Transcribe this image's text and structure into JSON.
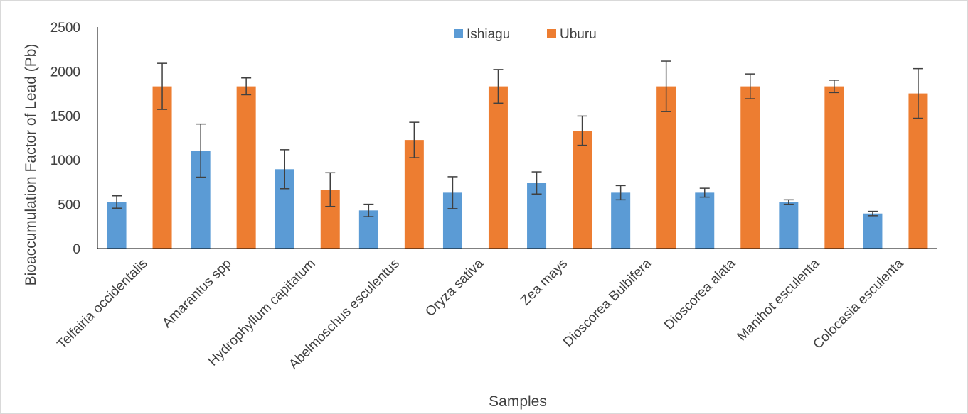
{
  "chart_data": {
    "type": "bar",
    "xlabel": "Samples",
    "ylabel": "Bioaccumulation Factor of Lead (Pb)",
    "ylim": [
      0,
      2500
    ],
    "yticks": [
      "0",
      "500",
      "1000",
      "1500",
      "2000",
      "2500"
    ],
    "grid": false,
    "legend_position": "top-center",
    "error_bars": true,
    "categories": [
      "Telfairia occidentalis",
      "Amarantus spp",
      "Hydrophyllum capitatum",
      "Abelmoschus esculentus",
      "Oryza sativa",
      "Zea mays",
      "Dioscorea Bulbifera",
      "Dioscorea alata",
      "Manihot esculenta",
      "Colocasia esculenta"
    ],
    "series": [
      {
        "name": "Ishiagu",
        "color": "#5b9bd5",
        "values": [
          525,
          1105,
          895,
          430,
          630,
          740,
          630,
          630,
          525,
          395
        ],
        "errors": [
          70,
          300,
          220,
          70,
          180,
          125,
          80,
          50,
          25,
          25
        ]
      },
      {
        "name": "Uburu",
        "color": "#ed7d31",
        "values": [
          1830,
          1830,
          665,
          1225,
          1830,
          1330,
          1830,
          1830,
          1830,
          1750
        ],
        "errors": [
          260,
          95,
          190,
          200,
          190,
          165,
          285,
          140,
          70,
          280
        ]
      }
    ]
  }
}
